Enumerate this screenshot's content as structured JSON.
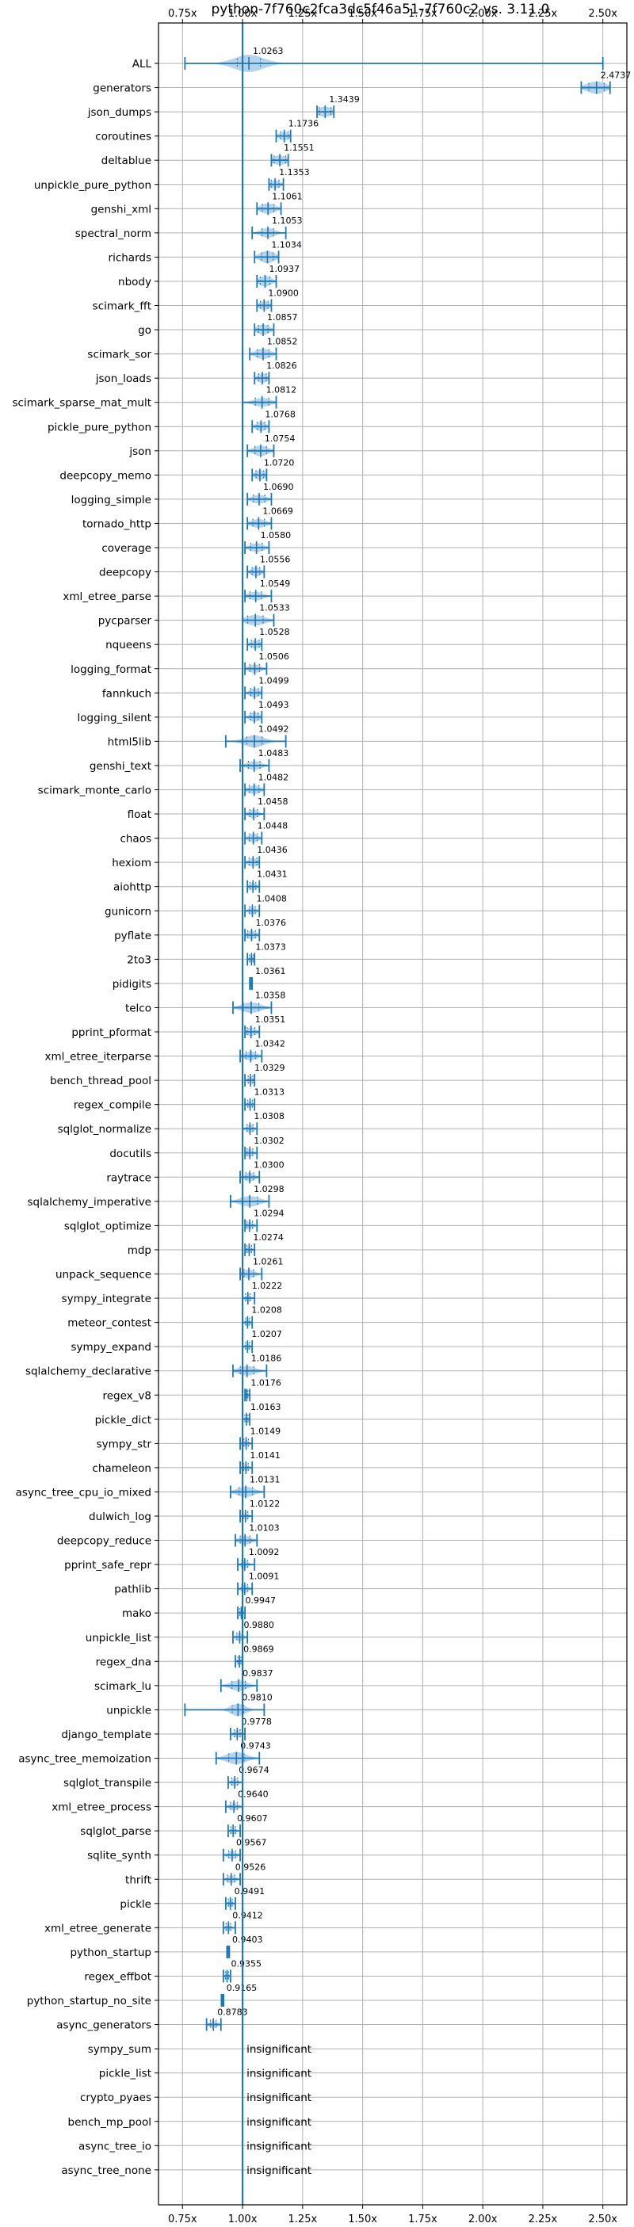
{
  "chart_data": {
    "type": "violin",
    "title": "python-7f760c2fca3dc5f46a51-7f760c2 vs. 3.11.0",
    "xlabel": "",
    "ylabel": "",
    "xlim": [
      0.65,
      2.6
    ],
    "xticks": [
      0.75,
      1.0,
      1.25,
      1.5,
      1.75,
      2.0,
      2.25,
      2.5
    ],
    "xtick_labels": [
      "0.75x",
      "1.00x",
      "1.25x",
      "1.50x",
      "1.75x",
      "2.00x",
      "2.25x",
      "2.50x"
    ],
    "grid": true,
    "reference_x": 1.0,
    "insignificant_label": "insignificant",
    "colors": {
      "accent": "#1f77b4",
      "violin": "#aacbe6",
      "grid": "#b0b0b0"
    },
    "benchmarks": [
      {
        "name": "ALL",
        "value": 1.0263,
        "label": "1.0263",
        "min": 0.76,
        "max": 2.5,
        "spread": 0.06,
        "width": 1.0
      },
      {
        "name": "generators",
        "value": 2.4737,
        "label": "2.4737",
        "min": 2.41,
        "max": 2.53,
        "spread": 0.04,
        "width": 0.7
      },
      {
        "name": "json_dumps",
        "value": 1.3439,
        "label": "1.3439",
        "min": 1.31,
        "max": 1.38,
        "spread": 0.03,
        "width": 0.6
      },
      {
        "name": "coroutines",
        "value": 1.1736,
        "label": "1.1736",
        "min": 1.14,
        "max": 1.2,
        "spread": 0.02,
        "width": 0.5
      },
      {
        "name": "deltablue",
        "value": 1.1551,
        "label": "1.1551",
        "min": 1.12,
        "max": 1.19,
        "spread": 0.03,
        "width": 0.55
      },
      {
        "name": "unpickle_pure_python",
        "value": 1.1353,
        "label": "1.1353",
        "min": 1.11,
        "max": 1.17,
        "spread": 0.02,
        "width": 0.5
      },
      {
        "name": "genshi_xml",
        "value": 1.1061,
        "label": "1.1061",
        "min": 1.06,
        "max": 1.16,
        "spread": 0.03,
        "width": 0.6
      },
      {
        "name": "spectral_norm",
        "value": 1.1053,
        "label": "1.1053",
        "min": 1.04,
        "max": 1.18,
        "spread": 0.03,
        "width": 0.55
      },
      {
        "name": "richards",
        "value": 1.1034,
        "label": "1.1034",
        "min": 1.05,
        "max": 1.15,
        "spread": 0.03,
        "width": 0.7
      },
      {
        "name": "nbody",
        "value": 1.0937,
        "label": "1.0937",
        "min": 1.06,
        "max": 1.14,
        "spread": 0.025,
        "width": 0.6
      },
      {
        "name": "scimark_fft",
        "value": 1.09,
        "label": "1.0900",
        "min": 1.06,
        "max": 1.12,
        "spread": 0.02,
        "width": 0.55
      },
      {
        "name": "go",
        "value": 1.0857,
        "label": "1.0857",
        "min": 1.05,
        "max": 1.13,
        "spread": 0.025,
        "width": 0.6
      },
      {
        "name": "scimark_sor",
        "value": 1.0852,
        "label": "1.0852",
        "min": 1.03,
        "max": 1.14,
        "spread": 0.03,
        "width": 0.6
      },
      {
        "name": "json_loads",
        "value": 1.0826,
        "label": "1.0826",
        "min": 1.05,
        "max": 1.11,
        "spread": 0.02,
        "width": 0.55
      },
      {
        "name": "scimark_sparse_mat_mult",
        "value": 1.0812,
        "label": "1.0812",
        "min": 1.0,
        "max": 1.14,
        "spread": 0.035,
        "width": 0.5
      },
      {
        "name": "pickle_pure_python",
        "value": 1.0768,
        "label": "1.0768",
        "min": 1.04,
        "max": 1.11,
        "spread": 0.02,
        "width": 0.55
      },
      {
        "name": "json",
        "value": 1.0754,
        "label": "1.0754",
        "min": 1.02,
        "max": 1.13,
        "spread": 0.03,
        "width": 0.6
      },
      {
        "name": "deepcopy_memo",
        "value": 1.072,
        "label": "1.0720",
        "min": 1.04,
        "max": 1.1,
        "spread": 0.02,
        "width": 0.55
      },
      {
        "name": "logging_simple",
        "value": 1.069,
        "label": "1.0690",
        "min": 1.02,
        "max": 1.12,
        "spread": 0.03,
        "width": 0.5
      },
      {
        "name": "tornado_http",
        "value": 1.0669,
        "label": "1.0669",
        "min": 1.02,
        "max": 1.12,
        "spread": 0.03,
        "width": 0.5
      },
      {
        "name": "coverage",
        "value": 1.058,
        "label": "1.0580",
        "min": 1.01,
        "max": 1.11,
        "spread": 0.03,
        "width": 0.5
      },
      {
        "name": "deepcopy",
        "value": 1.0556,
        "label": "1.0556",
        "min": 1.02,
        "max": 1.09,
        "spread": 0.02,
        "width": 0.55
      },
      {
        "name": "xml_etree_parse",
        "value": 1.0549,
        "label": "1.0549",
        "min": 1.01,
        "max": 1.12,
        "spread": 0.03,
        "width": 0.5
      },
      {
        "name": "pycparser",
        "value": 1.0533,
        "label": "1.0533",
        "min": 1.0,
        "max": 1.13,
        "spread": 0.04,
        "width": 0.6
      },
      {
        "name": "nqueens",
        "value": 1.0528,
        "label": "1.0528",
        "min": 1.02,
        "max": 1.08,
        "spread": 0.02,
        "width": 0.5
      },
      {
        "name": "logging_format",
        "value": 1.0506,
        "label": "1.0506",
        "min": 1.01,
        "max": 1.1,
        "spread": 0.025,
        "width": 0.5
      },
      {
        "name": "fannkuch",
        "value": 1.0499,
        "label": "1.0499",
        "min": 1.01,
        "max": 1.08,
        "spread": 0.02,
        "width": 0.55
      },
      {
        "name": "logging_silent",
        "value": 1.0493,
        "label": "1.0493",
        "min": 1.01,
        "max": 1.08,
        "spread": 0.02,
        "width": 0.55
      },
      {
        "name": "html5lib",
        "value": 1.0492,
        "label": "1.0492",
        "min": 0.93,
        "max": 1.18,
        "spread": 0.04,
        "width": 0.7
      },
      {
        "name": "genshi_text",
        "value": 1.0483,
        "label": "1.0483",
        "min": 0.99,
        "max": 1.11,
        "spread": 0.03,
        "width": 0.5
      },
      {
        "name": "scimark_monte_carlo",
        "value": 1.0482,
        "label": "1.0482",
        "min": 1.01,
        "max": 1.09,
        "spread": 0.025,
        "width": 0.5
      },
      {
        "name": "float",
        "value": 1.0458,
        "label": "1.0458",
        "min": 1.01,
        "max": 1.09,
        "spread": 0.02,
        "width": 0.5
      },
      {
        "name": "chaos",
        "value": 1.0448,
        "label": "1.0448",
        "min": 1.01,
        "max": 1.08,
        "spread": 0.02,
        "width": 0.5
      },
      {
        "name": "hexiom",
        "value": 1.0436,
        "label": "1.0436",
        "min": 1.01,
        "max": 1.07,
        "spread": 0.02,
        "width": 0.5
      },
      {
        "name": "aiohttp",
        "value": 1.0431,
        "label": "1.0431",
        "min": 1.02,
        "max": 1.07,
        "spread": 0.015,
        "width": 0.45
      },
      {
        "name": "gunicorn",
        "value": 1.0408,
        "label": "1.0408",
        "min": 1.01,
        "max": 1.07,
        "spread": 0.015,
        "width": 0.45
      },
      {
        "name": "pyflate",
        "value": 1.0376,
        "label": "1.0376",
        "min": 1.01,
        "max": 1.07,
        "spread": 0.02,
        "width": 0.5
      },
      {
        "name": "2to3",
        "value": 1.0373,
        "label": "1.0373",
        "min": 1.02,
        "max": 1.05,
        "spread": 0.01,
        "width": 0.4
      },
      {
        "name": "pidigits",
        "value": 1.0361,
        "label": "1.0361",
        "min": 1.03,
        "max": 1.04,
        "spread": 0.003,
        "width": 0.3
      },
      {
        "name": "telco",
        "value": 1.0358,
        "label": "1.0358",
        "min": 0.96,
        "max": 1.12,
        "spread": 0.04,
        "width": 0.6
      },
      {
        "name": "pprint_pformat",
        "value": 1.0351,
        "label": "1.0351",
        "min": 1.01,
        "max": 1.07,
        "spread": 0.02,
        "width": 0.5
      },
      {
        "name": "xml_etree_iterparse",
        "value": 1.0342,
        "label": "1.0342",
        "min": 0.99,
        "max": 1.08,
        "spread": 0.025,
        "width": 0.5
      },
      {
        "name": "bench_thread_pool",
        "value": 1.0329,
        "label": "1.0329",
        "min": 1.01,
        "max": 1.05,
        "spread": 0.012,
        "width": 0.4
      },
      {
        "name": "regex_compile",
        "value": 1.0313,
        "label": "1.0313",
        "min": 1.01,
        "max": 1.05,
        "spread": 0.012,
        "width": 0.4
      },
      {
        "name": "sqlglot_normalize",
        "value": 1.0308,
        "label": "1.0308",
        "min": 1.0,
        "max": 1.06,
        "spread": 0.015,
        "width": 0.45
      },
      {
        "name": "docutils",
        "value": 1.0302,
        "label": "1.0302",
        "min": 1.01,
        "max": 1.06,
        "spread": 0.015,
        "width": 0.45
      },
      {
        "name": "raytrace",
        "value": 1.03,
        "label": "1.0300",
        "min": 0.99,
        "max": 1.07,
        "spread": 0.02,
        "width": 0.5
      },
      {
        "name": "sqlalchemy_imperative",
        "value": 1.0298,
        "label": "1.0298",
        "min": 0.95,
        "max": 1.11,
        "spread": 0.04,
        "width": 0.6
      },
      {
        "name": "sqlglot_optimize",
        "value": 1.0294,
        "label": "1.0294",
        "min": 1.01,
        "max": 1.06,
        "spread": 0.015,
        "width": 0.45
      },
      {
        "name": "mdp",
        "value": 1.0274,
        "label": "1.0274",
        "min": 1.01,
        "max": 1.05,
        "spread": 0.012,
        "width": 0.4
      },
      {
        "name": "unpack_sequence",
        "value": 1.0261,
        "label": "1.0261",
        "min": 0.99,
        "max": 1.08,
        "spread": 0.025,
        "width": 0.5
      },
      {
        "name": "sympy_integrate",
        "value": 1.0222,
        "label": "1.0222",
        "min": 1.0,
        "max": 1.05,
        "spread": 0.012,
        "width": 0.4
      },
      {
        "name": "meteor_contest",
        "value": 1.0208,
        "label": "1.0208",
        "min": 1.0,
        "max": 1.04,
        "spread": 0.01,
        "width": 0.4
      },
      {
        "name": "sympy_expand",
        "value": 1.0207,
        "label": "1.0207",
        "min": 1.0,
        "max": 1.04,
        "spread": 0.01,
        "width": 0.4
      },
      {
        "name": "sqlalchemy_declarative",
        "value": 1.0186,
        "label": "1.0186",
        "min": 0.96,
        "max": 1.1,
        "spread": 0.035,
        "width": 0.55
      },
      {
        "name": "regex_v8",
        "value": 1.0176,
        "label": "1.0176",
        "min": 1.01,
        "max": 1.03,
        "spread": 0.006,
        "width": 0.35
      },
      {
        "name": "pickle_dict",
        "value": 1.0163,
        "label": "1.0163",
        "min": 1.0,
        "max": 1.03,
        "spread": 0.008,
        "width": 0.35
      },
      {
        "name": "sympy_str",
        "value": 1.0149,
        "label": "1.0149",
        "min": 0.99,
        "max": 1.04,
        "spread": 0.012,
        "width": 0.4
      },
      {
        "name": "chameleon",
        "value": 1.0141,
        "label": "1.0141",
        "min": 0.99,
        "max": 1.04,
        "spread": 0.012,
        "width": 0.4
      },
      {
        "name": "async_tree_cpu_io_mixed",
        "value": 1.0131,
        "label": "1.0131",
        "min": 0.95,
        "max": 1.09,
        "spread": 0.035,
        "width": 0.6
      },
      {
        "name": "dulwich_log",
        "value": 1.0122,
        "label": "1.0122",
        "min": 0.99,
        "max": 1.04,
        "spread": 0.012,
        "width": 0.4
      },
      {
        "name": "deepcopy_reduce",
        "value": 1.0103,
        "label": "1.0103",
        "min": 0.97,
        "max": 1.06,
        "spread": 0.025,
        "width": 0.5
      },
      {
        "name": "pprint_safe_repr",
        "value": 1.0092,
        "label": "1.0092",
        "min": 0.98,
        "max": 1.05,
        "spread": 0.015,
        "width": 0.45
      },
      {
        "name": "pathlib",
        "value": 1.0091,
        "label": "1.0091",
        "min": 0.98,
        "max": 1.04,
        "spread": 0.015,
        "width": 0.45
      },
      {
        "name": "mako",
        "value": 0.9947,
        "label": "0.9947",
        "min": 0.98,
        "max": 1.01,
        "spread": 0.008,
        "width": 0.35
      },
      {
        "name": "unpickle_list",
        "value": 0.988,
        "label": "0.9880",
        "min": 0.96,
        "max": 1.02,
        "spread": 0.015,
        "width": 0.45
      },
      {
        "name": "regex_dna",
        "value": 0.9869,
        "label": "0.9869",
        "min": 0.97,
        "max": 1.0,
        "spread": 0.008,
        "width": 0.35
      },
      {
        "name": "scimark_lu",
        "value": 0.9837,
        "label": "0.9837",
        "min": 0.91,
        "max": 1.06,
        "spread": 0.035,
        "width": 0.6
      },
      {
        "name": "unpickle",
        "value": 0.981,
        "label": "0.9810",
        "min": 0.76,
        "max": 1.09,
        "spread": 0.03,
        "width": 0.7
      },
      {
        "name": "django_template",
        "value": 0.9778,
        "label": "0.9778",
        "min": 0.95,
        "max": 1.01,
        "spread": 0.015,
        "width": 0.45
      },
      {
        "name": "async_tree_memoization",
        "value": 0.9743,
        "label": "0.9743",
        "min": 0.89,
        "max": 1.07,
        "spread": 0.04,
        "width": 0.7
      },
      {
        "name": "sqlglot_transpile",
        "value": 0.9674,
        "label": "0.9674",
        "min": 0.94,
        "max": 1.0,
        "spread": 0.015,
        "width": 0.45
      },
      {
        "name": "xml_etree_process",
        "value": 0.964,
        "label": "0.9640",
        "min": 0.93,
        "max": 1.0,
        "spread": 0.018,
        "width": 0.45
      },
      {
        "name": "sqlglot_parse",
        "value": 0.9607,
        "label": "0.9607",
        "min": 0.94,
        "max": 0.99,
        "spread": 0.012,
        "width": 0.4
      },
      {
        "name": "sqlite_synth",
        "value": 0.9567,
        "label": "0.9567",
        "min": 0.92,
        "max": 0.99,
        "spread": 0.018,
        "width": 0.45
      },
      {
        "name": "thrift",
        "value": 0.9526,
        "label": "0.9526",
        "min": 0.92,
        "max": 0.99,
        "spread": 0.018,
        "width": 0.45
      },
      {
        "name": "pickle",
        "value": 0.9491,
        "label": "0.9491",
        "min": 0.93,
        "max": 0.97,
        "spread": 0.01,
        "width": 0.4
      },
      {
        "name": "xml_etree_generate",
        "value": 0.9412,
        "label": "0.9412",
        "min": 0.92,
        "max": 0.97,
        "spread": 0.012,
        "width": 0.4
      },
      {
        "name": "python_startup",
        "value": 0.9403,
        "label": "0.9403",
        "min": 0.935,
        "max": 0.945,
        "spread": 0.003,
        "width": 0.25
      },
      {
        "name": "regex_effbot",
        "value": 0.9355,
        "label": "0.9355",
        "min": 0.92,
        "max": 0.95,
        "spread": 0.008,
        "width": 0.35
      },
      {
        "name": "python_startup_no_site",
        "value": 0.9165,
        "label": "0.9165",
        "min": 0.912,
        "max": 0.921,
        "spread": 0.003,
        "width": 0.25
      },
      {
        "name": "async_generators",
        "value": 0.8783,
        "label": "0.8783",
        "min": 0.85,
        "max": 0.91,
        "spread": 0.015,
        "width": 0.45
      },
      {
        "name": "sympy_sum",
        "value": null,
        "label": "insignificant"
      },
      {
        "name": "pickle_list",
        "value": null,
        "label": "insignificant"
      },
      {
        "name": "crypto_pyaes",
        "value": null,
        "label": "insignificant"
      },
      {
        "name": "bench_mp_pool",
        "value": null,
        "label": "insignificant"
      },
      {
        "name": "async_tree_io",
        "value": null,
        "label": "insignificant"
      },
      {
        "name": "async_tree_none",
        "value": null,
        "label": "insignificant"
      }
    ]
  }
}
